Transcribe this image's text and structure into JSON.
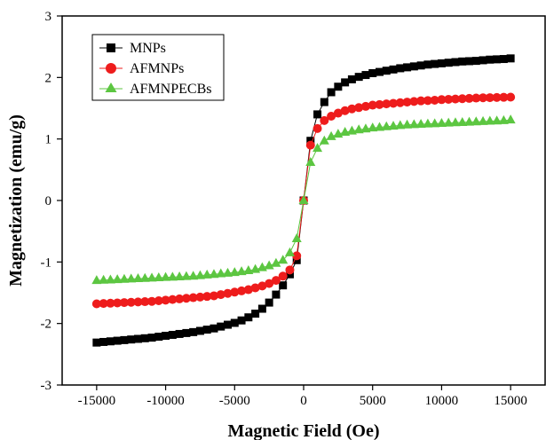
{
  "chart_data": {
    "type": "line",
    "title": "",
    "xlabel": "Magnetic Field (Oe)",
    "ylabel": "Magnetization (emu/g)",
    "xlim": [
      -17500,
      17500
    ],
    "ylim": [
      -3,
      3
    ],
    "xticks": [
      -15000,
      -10000,
      -5000,
      0,
      5000,
      10000,
      15000
    ],
    "yticks": [
      -3,
      -2,
      -1,
      0,
      1,
      2,
      3
    ],
    "grid": false,
    "legend_position": "top-left",
    "x": [
      -15000,
      -14500,
      -14000,
      -13500,
      -13000,
      -12500,
      -12000,
      -11500,
      -11000,
      -10500,
      -10000,
      -9500,
      -9000,
      -8500,
      -8000,
      -7500,
      -7000,
      -6500,
      -6000,
      -5500,
      -5000,
      -4500,
      -4000,
      -3500,
      -3000,
      -2500,
      -2000,
      -1500,
      -1000,
      -500,
      0,
      500,
      1000,
      1500,
      2000,
      2500,
      3000,
      3500,
      4000,
      4500,
      5000,
      5500,
      6000,
      6500,
      7000,
      7500,
      8000,
      8500,
      9000,
      9500,
      10000,
      10500,
      11000,
      11500,
      12000,
      12500,
      13000,
      13500,
      14000,
      14500,
      15000
    ],
    "series": [
      {
        "name": "MNPs",
        "color": "#000000",
        "marker": "square",
        "values": [
          -2.31,
          -2.3,
          -2.29,
          -2.28,
          -2.27,
          -2.26,
          -2.25,
          -2.24,
          -2.23,
          -2.215,
          -2.2,
          -2.185,
          -2.17,
          -2.155,
          -2.14,
          -2.12,
          -2.1,
          -2.08,
          -2.05,
          -2.02,
          -1.99,
          -1.95,
          -1.9,
          -1.84,
          -1.76,
          -1.66,
          -1.53,
          -1.38,
          -1.2,
          -0.97,
          0.0,
          0.97,
          1.4,
          1.6,
          1.76,
          1.85,
          1.92,
          1.97,
          2.01,
          2.04,
          2.07,
          2.09,
          2.11,
          2.13,
          2.15,
          2.165,
          2.18,
          2.195,
          2.21,
          2.22,
          2.23,
          2.24,
          2.25,
          2.26,
          2.265,
          2.27,
          2.28,
          2.29,
          2.295,
          2.3,
          2.31
        ]
      },
      {
        "name": "AFMNPs",
        "color": "#ee1c1c",
        "marker": "circle",
        "values": [
          -1.68,
          -1.675,
          -1.67,
          -1.665,
          -1.66,
          -1.655,
          -1.65,
          -1.645,
          -1.64,
          -1.63,
          -1.62,
          -1.61,
          -1.6,
          -1.59,
          -1.58,
          -1.57,
          -1.56,
          -1.55,
          -1.53,
          -1.51,
          -1.49,
          -1.47,
          -1.45,
          -1.42,
          -1.39,
          -1.35,
          -1.3,
          -1.23,
          -1.13,
          -0.9,
          0.0,
          0.9,
          1.17,
          1.3,
          1.37,
          1.42,
          1.46,
          1.49,
          1.51,
          1.53,
          1.55,
          1.56,
          1.57,
          1.58,
          1.59,
          1.6,
          1.61,
          1.62,
          1.625,
          1.63,
          1.64,
          1.645,
          1.65,
          1.655,
          1.66,
          1.665,
          1.67,
          1.672,
          1.675,
          1.678,
          1.68
        ]
      },
      {
        "name": "AFMNPECBs",
        "color": "#5cc641",
        "marker": "triangle",
        "values": [
          -1.3,
          -1.295,
          -1.29,
          -1.285,
          -1.28,
          -1.275,
          -1.27,
          -1.265,
          -1.26,
          -1.255,
          -1.25,
          -1.245,
          -1.24,
          -1.235,
          -1.23,
          -1.22,
          -1.21,
          -1.2,
          -1.19,
          -1.18,
          -1.17,
          -1.155,
          -1.14,
          -1.12,
          -1.09,
          -1.06,
          -1.02,
          -0.97,
          -0.85,
          -0.62,
          0.0,
          0.62,
          0.85,
          0.97,
          1.04,
          1.08,
          1.11,
          1.13,
          1.15,
          1.165,
          1.18,
          1.19,
          1.2,
          1.21,
          1.22,
          1.23,
          1.235,
          1.24,
          1.245,
          1.25,
          1.255,
          1.26,
          1.265,
          1.27,
          1.275,
          1.28,
          1.285,
          1.29,
          1.295,
          1.3,
          1.31
        ]
      }
    ]
  }
}
